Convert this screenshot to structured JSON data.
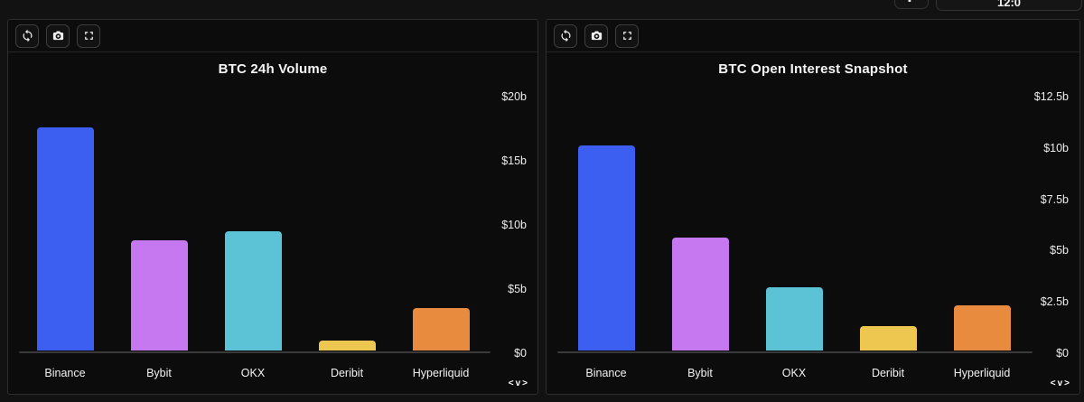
{
  "ui": {
    "topbar_partial_text": "12:0",
    "toolbar_icons": [
      "refresh",
      "camera",
      "fullscreen"
    ],
    "pager_text": "<v>"
  },
  "colors": {
    "binance": "#3c5ff2",
    "bybit": "#c678f1",
    "okx": "#5bc3d5",
    "deribit": "#eec751",
    "hyperliquid": "#e98b3f",
    "panel_bg": "#0c0c0c",
    "panel_border": "#2d2d2d",
    "axis_line": "#3a3a3a",
    "text": "#f2f2f2"
  },
  "chart_data": [
    {
      "type": "bar",
      "title": "BTC 24h Volume",
      "categories": [
        "Binance",
        "Bybit",
        "OKX",
        "Deribit",
        "Hyperliquid"
      ],
      "values": [
        17.4,
        8.6,
        9.3,
        0.8,
        3.3
      ],
      "bar_colors": [
        "#3c5ff2",
        "#c678f1",
        "#5bc3d5",
        "#eec751",
        "#e98b3f"
      ],
      "unit": "billions USD",
      "xlabel": "",
      "ylabel": "",
      "ylim": [
        0,
        20
      ],
      "yticks": [
        {
          "label": "$0",
          "value": 0
        },
        {
          "label": "$5b",
          "value": 5
        },
        {
          "label": "$10b",
          "value": 10
        },
        {
          "label": "$15b",
          "value": 15
        },
        {
          "label": "$20b",
          "value": 20
        }
      ],
      "grid": false,
      "legend": false,
      "axis_side": "right"
    },
    {
      "type": "bar",
      "title": "BTC Open Interest Snapshot",
      "categories": [
        "Binance",
        "Bybit",
        "OKX",
        "Deribit",
        "Hyperliquid"
      ],
      "values": [
        10.0,
        5.5,
        3.1,
        1.2,
        2.2
      ],
      "bar_colors": [
        "#3c5ff2",
        "#c678f1",
        "#5bc3d5",
        "#eec751",
        "#e98b3f"
      ],
      "unit": "billions USD",
      "xlabel": "",
      "ylabel": "",
      "ylim": [
        0,
        12.5
      ],
      "yticks": [
        {
          "label": "$0",
          "value": 0
        },
        {
          "label": "$2.5b",
          "value": 2.5
        },
        {
          "label": "$5b",
          "value": 5
        },
        {
          "label": "$7.5b",
          "value": 7.5
        },
        {
          "label": "$10b",
          "value": 10
        },
        {
          "label": "$12.5b",
          "value": 12.5
        }
      ],
      "grid": false,
      "legend": false,
      "axis_side": "right"
    }
  ]
}
